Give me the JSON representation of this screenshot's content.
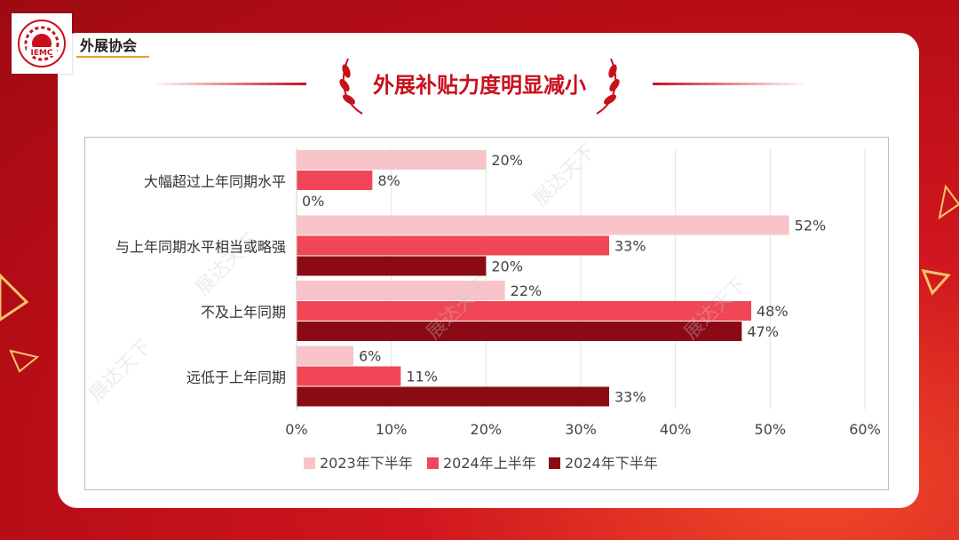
{
  "brand": {
    "name": "外展协会",
    "logo_text": "IEMC"
  },
  "title": "外展补贴力度明显减小",
  "watermark": "展达天下",
  "colors": {
    "s2023h2": "#f8c3c9",
    "s2024h1": "#f04656",
    "s2024h2": "#8b0a14"
  },
  "chart_data": {
    "type": "bar",
    "orientation": "horizontal",
    "categories": [
      "大幅超过上年同期水平",
      "与上年同期水平相当或略强",
      "不及上年同期",
      "远低于上年同期"
    ],
    "series": [
      {
        "name": "2023年下半年",
        "values": [
          20,
          52,
          22,
          6
        ]
      },
      {
        "name": "2024年上半年",
        "values": [
          8,
          33,
          48,
          11
        ]
      },
      {
        "name": "2024年下半年",
        "values": [
          0,
          20,
          47,
          33
        ]
      }
    ],
    "value_format": "percent",
    "xlim": [
      0,
      60
    ],
    "xticks": [
      "0%",
      "10%",
      "20%",
      "30%",
      "40%",
      "50%",
      "60%"
    ],
    "grid": "vertical",
    "legend": "bottom"
  }
}
